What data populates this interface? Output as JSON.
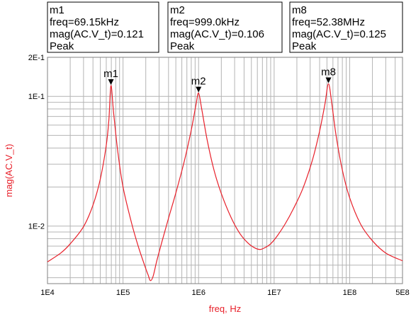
{
  "colors": {
    "trace": "#e8202a",
    "grid": "#b4b4b4",
    "frame": "#808080",
    "axis_title": "#e8202a"
  },
  "markers": [
    {
      "name": "m1",
      "freq_text": "freq=69.15kHz",
      "mag_text": "mag(AC.V_t)=0.121",
      "type_text": "Peak",
      "x": 69150,
      "y": 0.121
    },
    {
      "name": "m2",
      "freq_text": "freq=999.0kHz",
      "mag_text": "mag(AC.V_t)=0.106",
      "type_text": "Peak",
      "x": 999000,
      "y": 0.106
    },
    {
      "name": "m8",
      "freq_text": "freq=52.38MHz",
      "mag_text": "mag(AC.V_t)=0.125",
      "type_text": "Peak",
      "x": 52380000,
      "y": 0.125
    }
  ],
  "chart_data": {
    "type": "line",
    "xlabel": "freq, Hz",
    "ylabel": "mag(AC.V_t)",
    "x_scale": "log",
    "y_scale": "log",
    "xlim": [
      10000,
      500000000
    ],
    "ylim": [
      0.0036,
      0.2
    ],
    "x_tick_values": [
      10000,
      100000,
      1000000,
      10000000,
      100000000,
      500000000
    ],
    "x_tick_labels": [
      "1E4",
      "1E5",
      "1E6",
      "1E7",
      "1E8",
      "5E8"
    ],
    "y_tick_values": [
      0.2,
      0.1,
      0.01
    ],
    "y_tick_labels": [
      "2E-1",
      "1E-1",
      "1E-2"
    ],
    "grid": true,
    "series": [
      {
        "x": [
          10000,
          15000,
          20000,
          30000,
          40000,
          50000,
          60000,
          65000,
          69150,
          75000,
          85000,
          100000,
          130000,
          160000,
          200000,
          215000,
          230000,
          250000,
          280000,
          330000,
          400000,
          500000,
          650000,
          800000,
          920000,
          999000,
          1100000,
          1300000,
          1600000,
          2000000,
          2700000,
          3500000,
          4500000,
          5500000,
          6500000,
          7500000,
          9000000,
          11000000,
          14000000,
          18000000,
          24000000,
          32000000,
          40000000,
          47000000,
          52380000,
          58000000,
          66000000,
          80000000,
          100000000,
          140000000,
          200000000,
          300000000,
          500000000
        ],
        "y": [
          0.0053,
          0.0062,
          0.0073,
          0.0099,
          0.0145,
          0.023,
          0.042,
          0.066,
          0.121,
          0.075,
          0.038,
          0.02,
          0.0105,
          0.0069,
          0.0047,
          0.0042,
          0.0038,
          0.0041,
          0.0054,
          0.0077,
          0.0115,
          0.018,
          0.032,
          0.055,
          0.085,
          0.106,
          0.08,
          0.046,
          0.027,
          0.0178,
          0.0116,
          0.0088,
          0.0074,
          0.0068,
          0.0066,
          0.0068,
          0.0073,
          0.0084,
          0.0104,
          0.0136,
          0.0195,
          0.032,
          0.054,
          0.087,
          0.125,
          0.088,
          0.05,
          0.027,
          0.0165,
          0.0103,
          0.0077,
          0.0062,
          0.0054
        ]
      }
    ]
  }
}
